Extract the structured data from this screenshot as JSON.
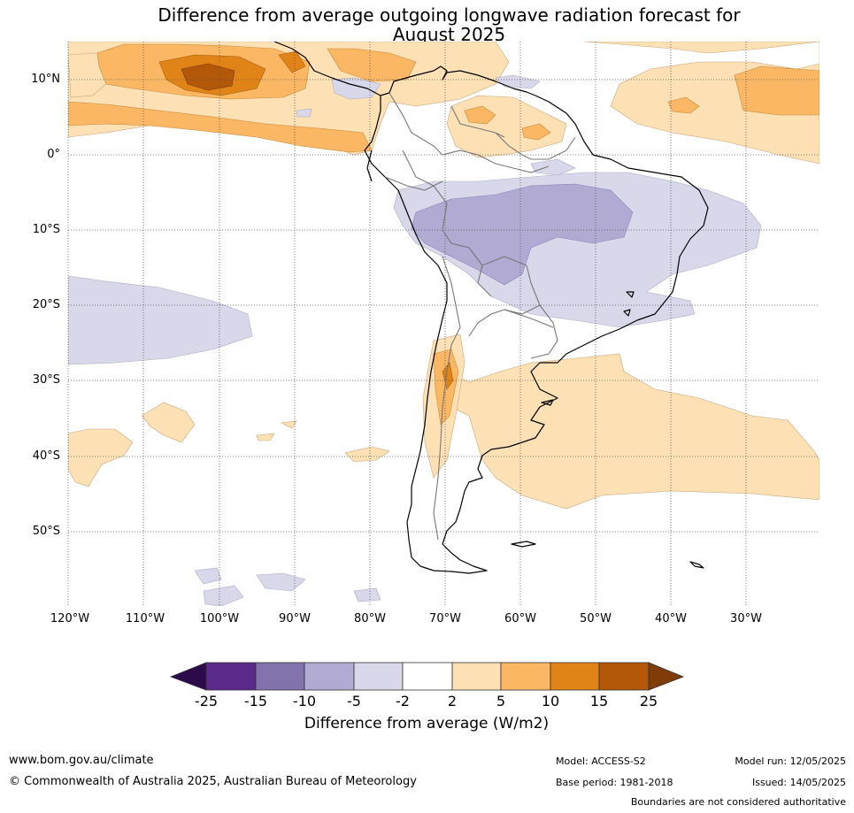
{
  "title_line1": "Difference from average outgoing longwave radiation forecast for",
  "title_line2": "August 2025",
  "lat_labels": [
    "10°N",
    "0°",
    "10°S",
    "20°S",
    "30°S",
    "40°S",
    "50°S"
  ],
  "lon_labels": [
    "120°W",
    "110°W",
    "100°W",
    "90°W",
    "80°W",
    "70°W",
    "60°W",
    "50°W",
    "40°W",
    "30°W"
  ],
  "colorbar": {
    "title": "Difference from average (W/m2)",
    "ticks": [
      "-25",
      "-15",
      "-10",
      "-5",
      "-2",
      "2",
      "5",
      "10",
      "15",
      "25"
    ],
    "colors": {
      "lt_neg25": "#2d0a4a",
      "neg25_neg15": "#5a2a8a",
      "neg15_neg10": "#8373ac",
      "neg10_neg5": "#b1aad2",
      "neg5_neg2": "#d8d8ea",
      "neg2_2": "#ffffff",
      "p2_p5": "#fde0b4",
      "p5_p10": "#fbb763",
      "p10_p15": "#e08418",
      "p15_p25": "#b35709",
      "gt_25": "#7f3b08"
    }
  },
  "footer": {
    "website": "www.bom.gov.au/climate",
    "copyright": "© Commonwealth of Australia 2025, Australian Bureau of Meteorology",
    "model": "Model: ACCESS-S2",
    "base_period": "Base period: 1981-2018",
    "model_run": "Model run: 12/05/2025",
    "issued": "Issued: 14/05/2025",
    "disclaimer": "Boundaries are not considered authoritative"
  }
}
